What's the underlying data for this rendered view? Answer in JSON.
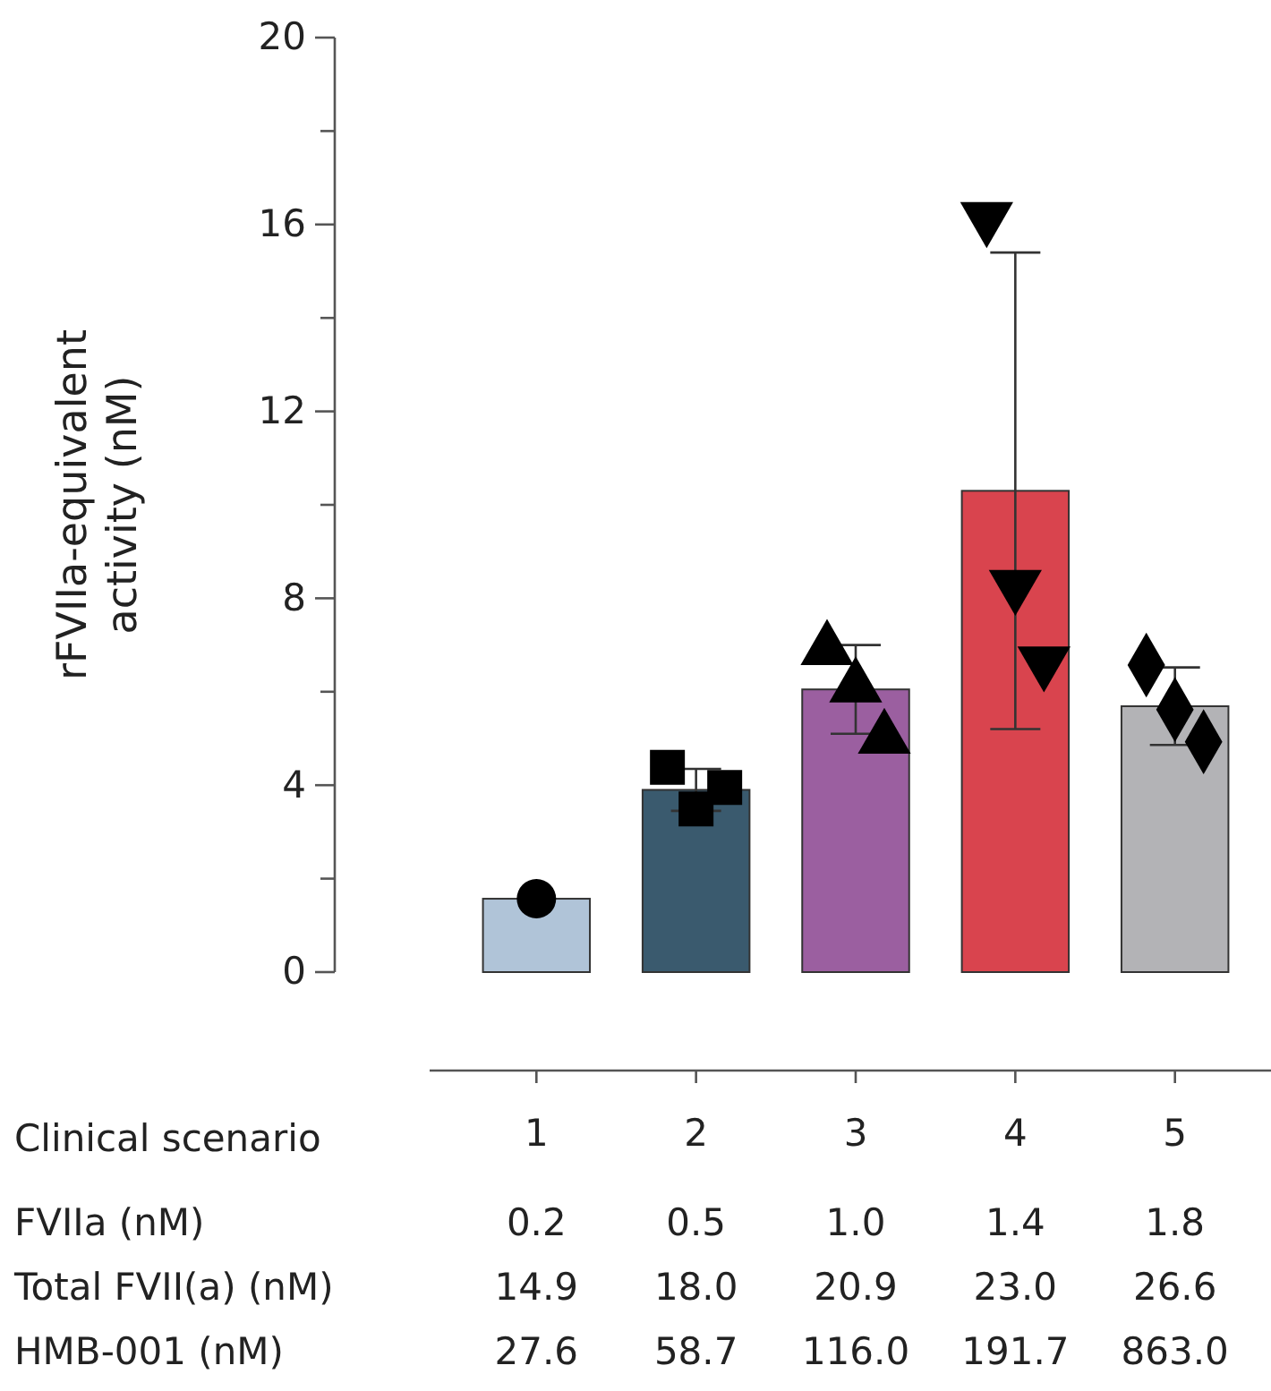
{
  "chart_data": {
    "type": "bar",
    "ylabel": "rFVIIa-equivalent activity (nM)",
    "xlabel": "Clinical scenario",
    "categories": [
      "1",
      "2",
      "3",
      "4",
      "5"
    ],
    "ylim": [
      0,
      20
    ],
    "yticks": [
      0,
      4,
      8,
      12,
      16,
      20
    ],
    "grid": false,
    "series": [
      {
        "type": "bar",
        "values": [
          1.57,
          3.9,
          6.05,
          10.3,
          5.69
        ],
        "colors": [
          "#b0c4d8",
          "#3a5a6e",
          "#9b5fa0",
          "#d9444e",
          "#b3b3b6"
        ],
        "errors": [
          null,
          0.45,
          0.95,
          5.1,
          0.83
        ]
      },
      {
        "type": "scatter",
        "color": "#000000",
        "marker": "circle",
        "x": [
          "1"
        ],
        "values": [
          1.57
        ]
      },
      {
        "type": "scatter",
        "color": "#000000",
        "marker": "square",
        "x": [
          "2",
          "2",
          "2"
        ],
        "values": [
          4.38,
          3.49,
          3.95
        ]
      },
      {
        "type": "scatter",
        "color": "#000000",
        "marker": "triangle",
        "x": [
          "3",
          "3",
          "3"
        ],
        "values": [
          6.9,
          6.1,
          5.0
        ]
      },
      {
        "type": "scatter",
        "color": "#000000",
        "marker": "triangle-down",
        "x": [
          "4",
          "4",
          "4"
        ],
        "values": [
          16.15,
          8.28,
          6.64
        ]
      },
      {
        "type": "scatter",
        "color": "#000000",
        "marker": "diamond",
        "x": [
          "5",
          "5",
          "5"
        ],
        "values": [
          6.57,
          5.62,
          4.93
        ]
      }
    ],
    "annotations": [
      "FVIIa (nM)",
      "0.2",
      "0.5",
      "1.0",
      "1.4",
      "1.8",
      "Total FVII(a) (nM)",
      "14.9",
      "18.0",
      "20.9",
      "23.0",
      "26.6",
      "HMB-001 (nM)",
      "27.6",
      "58.7",
      "116.0",
      "191.7",
      "863.0"
    ]
  }
}
